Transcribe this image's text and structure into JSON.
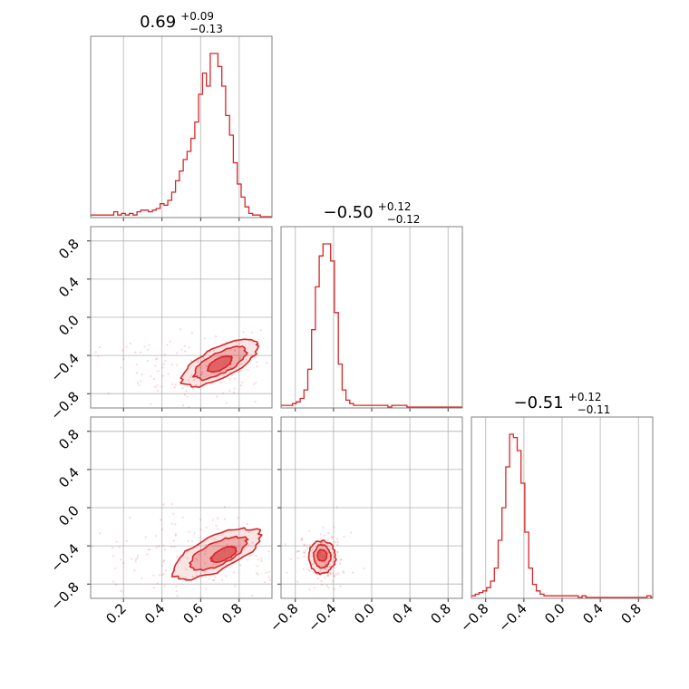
{
  "chart_data": {
    "type": "corner",
    "color": "#d62728",
    "grid": true,
    "axis_ticks": {
      "x0": [
        "0.2",
        "0.4",
        "0.6",
        "0.8"
      ],
      "x1": [
        "−0.8",
        "−0.4",
        "0.0",
        "0.4",
        "0.8"
      ],
      "x2": [
        "−0.8",
        "−0.4",
        "0.0",
        "0.4",
        "0.8"
      ],
      "y1": [
        "0.8",
        "0.4",
        "0.0",
        "−0.4",
        "−0.8"
      ],
      "y2": [
        "0.8",
        "0.4",
        "0.0",
        "−0.4",
        "−0.8"
      ]
    },
    "parameters": [
      {
        "title_main": "0.69",
        "title_plus": "+0.09",
        "title_minus": "−0.13",
        "median": 0.69,
        "err_plus": 0.09,
        "err_minus": 0.13,
        "range": [
          0.03,
          0.97
        ],
        "histogram": {
          "bins_start": 0.03,
          "bin_width": 0.02,
          "counts": [
            1,
            1,
            1,
            1,
            1,
            1,
            3,
            1,
            2,
            1,
            2,
            1,
            3,
            4,
            4,
            3,
            4,
            5,
            8,
            7,
            10,
            15,
            22,
            28,
            35,
            40,
            48,
            58,
            75,
            88,
            80,
            100,
            100,
            92,
            80,
            62,
            50,
            33,
            20,
            12,
            6,
            2,
            1,
            1,
            0,
            0,
            0
          ]
        }
      },
      {
        "title_main": "−0.50",
        "title_plus": "+0.12",
        "title_minus": "−0.12",
        "median": -0.5,
        "err_plus": 0.12,
        "err_minus": 0.12,
        "range": [
          -0.95,
          0.95
        ],
        "histogram": {
          "bins_start": -0.95,
          "bin_width": 0.04,
          "counts": [
            1,
            1,
            1,
            2,
            3,
            5,
            10,
            22,
            45,
            70,
            88,
            95,
            95,
            85,
            55,
            25,
            10,
            4,
            2,
            1,
            1,
            1,
            1,
            1,
            1,
            1,
            1,
            1,
            0,
            1,
            1,
            1,
            1,
            0,
            0,
            0,
            0,
            0,
            0,
            0,
            0,
            0,
            0,
            0,
            0,
            0,
            0,
            0
          ]
        }
      },
      {
        "title_main": "−0.51",
        "title_plus": "+0.12",
        "title_minus": "−0.11",
        "median": -0.51,
        "err_plus": 0.12,
        "err_minus": 0.11,
        "range": [
          -0.95,
          0.95
        ],
        "histogram": {
          "bins_start": -0.95,
          "bin_width": 0.04,
          "counts": [
            1,
            2,
            3,
            4,
            6,
            10,
            18,
            35,
            55,
            80,
            100,
            98,
            90,
            70,
            40,
            18,
            8,
            4,
            2,
            1,
            1,
            1,
            1,
            1,
            1,
            1,
            1,
            1,
            0,
            1,
            0,
            0,
            0,
            0,
            0,
            0,
            0,
            0,
            0,
            0,
            0,
            0,
            0,
            0,
            0,
            0,
            1,
            0
          ]
        }
      }
    ],
    "pairs": [
      {
        "row": 1,
        "col": 0,
        "contours": [
          {
            "level": "outer",
            "center": [
              0.7,
              -0.48
            ],
            "sx": 0.22,
            "sy": 0.16,
            "angle_deg": 27
          },
          {
            "level": "mid",
            "center": [
              0.7,
              -0.48
            ],
            "sx": 0.15,
            "sy": 0.11,
            "angle_deg": 27
          },
          {
            "level": "inner",
            "center": [
              0.7,
              -0.49
            ],
            "sx": 0.07,
            "sy": 0.06,
            "angle_deg": 27
          }
        ],
        "scatter_cloud": {
          "center": [
            0.62,
            -0.52
          ],
          "sx": 0.24,
          "sy": 0.2,
          "n": 160
        }
      },
      {
        "row": 2,
        "col": 0,
        "contours": [
          {
            "level": "outer",
            "center": [
              0.68,
              -0.48
            ],
            "sx": 0.25,
            "sy": 0.18,
            "angle_deg": 25
          },
          {
            "level": "mid",
            "center": [
              0.69,
              -0.48
            ],
            "sx": 0.16,
            "sy": 0.12,
            "angle_deg": 25
          },
          {
            "level": "inner",
            "center": [
              0.72,
              -0.49
            ],
            "sx": 0.07,
            "sy": 0.06,
            "angle_deg": 25
          }
        ],
        "scatter_cloud": {
          "center": [
            0.6,
            -0.55
          ],
          "sx": 0.26,
          "sy": 0.22,
          "n": 180
        }
      },
      {
        "row": 2,
        "col": 1,
        "contours": [
          {
            "level": "outer",
            "center": [
              -0.52,
              -0.52
            ],
            "sx": 0.14,
            "sy": 0.17,
            "angle_deg": 0
          },
          {
            "level": "mid",
            "center": [
              -0.52,
              -0.51
            ],
            "sx": 0.09,
            "sy": 0.12,
            "angle_deg": 0
          },
          {
            "level": "inner",
            "center": [
              -0.52,
              -0.5
            ],
            "sx": 0.05,
            "sy": 0.06,
            "angle_deg": 0
          }
        ],
        "scatter_cloud": {
          "center": [
            -0.52,
            -0.52
          ],
          "sx": 0.14,
          "sy": 0.16,
          "n": 150
        }
      }
    ]
  }
}
